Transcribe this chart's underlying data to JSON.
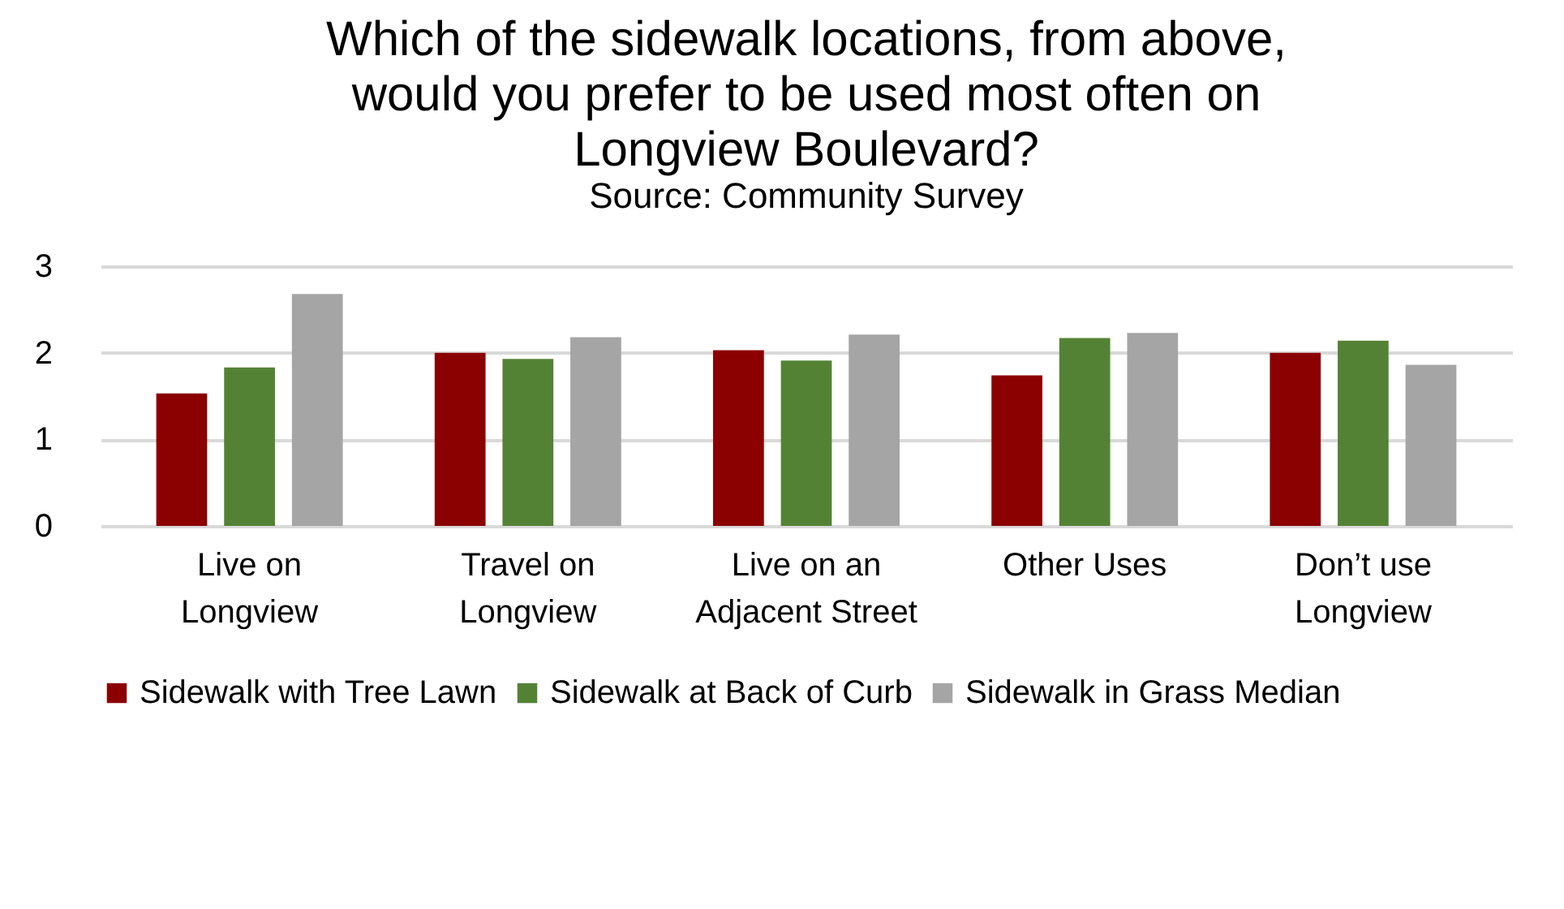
{
  "chart_data": {
    "type": "bar",
    "title": "Which of the sidewalk locations, from above, would you prefer to be used most often on Longview Boulevard?",
    "subtitle": "Source: Community Survey",
    "categories": [
      "Live on Longview",
      "Travel on Longview",
      "Live on an Adjacent Street",
      "Other Uses",
      "Don’t use Longview"
    ],
    "series": [
      {
        "name": "Sidewalk with Tree Lawn",
        "color": "#8b0000",
        "values": [
          1.53,
          2.0,
          2.03,
          1.74,
          2.0
        ]
      },
      {
        "name": "Sidewalk at Back of Curb",
        "color": "#548235",
        "values": [
          1.83,
          1.93,
          1.91,
          2.17,
          2.14
        ]
      },
      {
        "name": "Sidewalk in Grass Median",
        "color": "#a5a5a5",
        "values": [
          2.68,
          2.18,
          2.21,
          2.23,
          1.86
        ]
      }
    ],
    "ylim": [
      0,
      3
    ],
    "yticks": [
      0,
      1,
      2,
      3
    ],
    "grid": "y",
    "legend": "bottom"
  }
}
